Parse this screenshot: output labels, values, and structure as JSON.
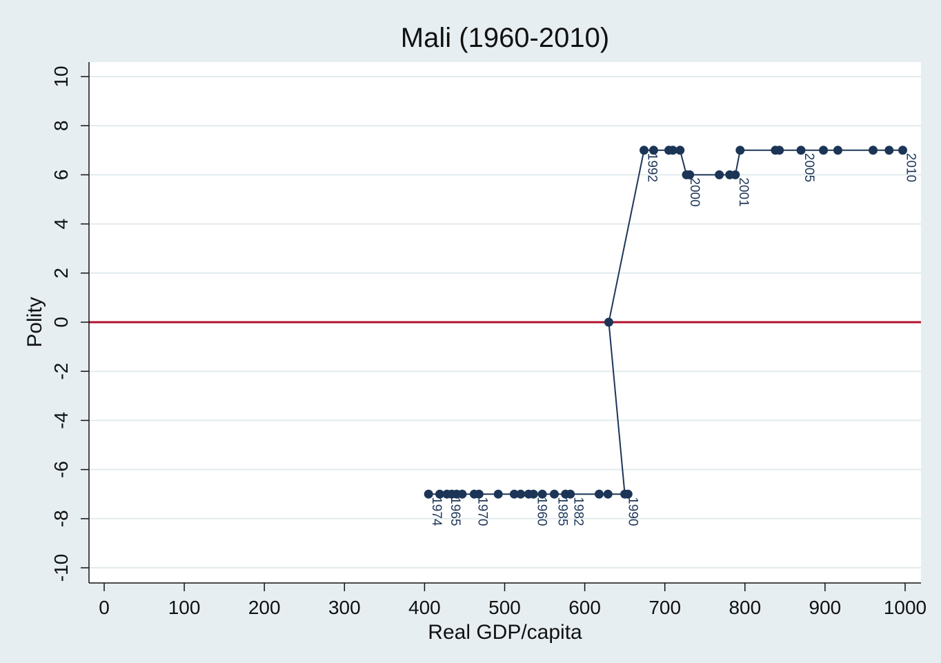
{
  "chart_data": {
    "type": "line",
    "title": "Mali (1960-2010)",
    "xlabel": "Real GDP/capita",
    "ylabel": "Polity",
    "xlim": [
      0,
      1000
    ],
    "ylim": [
      -10,
      10
    ],
    "xticks": [
      0,
      100,
      200,
      300,
      400,
      500,
      600,
      700,
      800,
      900,
      1000
    ],
    "yticks": [
      -10,
      -8,
      -6,
      -4,
      -2,
      0,
      2,
      4,
      6,
      8,
      10
    ],
    "grid": true,
    "reference_line": {
      "y": 0,
      "color": "#b0102e"
    },
    "series": [
      {
        "name": "Mali",
        "color": "#1c3557",
        "points": [
          {
            "x": 405,
            "y": -7,
            "label": "1974"
          },
          {
            "x": 419,
            "y": -7
          },
          {
            "x": 428,
            "y": -7,
            "label": "1965"
          },
          {
            "x": 434,
            "y": -7
          },
          {
            "x": 440,
            "y": -7
          },
          {
            "x": 447,
            "y": -7
          },
          {
            "x": 462,
            "y": -7,
            "label": "1970"
          },
          {
            "x": 468,
            "y": -7
          },
          {
            "x": 492,
            "y": -7
          },
          {
            "x": 512,
            "y": -7
          },
          {
            "x": 520,
            "y": -7
          },
          {
            "x": 530,
            "y": -7
          },
          {
            "x": 536,
            "y": -7,
            "label": "1960"
          },
          {
            "x": 547,
            "y": -7
          },
          {
            "x": 562,
            "y": -7,
            "label": "1985"
          },
          {
            "x": 576,
            "y": -7
          },
          {
            "x": 582,
            "y": -7,
            "label": "1982"
          },
          {
            "x": 618,
            "y": -7
          },
          {
            "x": 629,
            "y": -7
          },
          {
            "x": 654,
            "y": -7
          },
          {
            "x": 650,
            "y": -7,
            "label": "1990"
          },
          {
            "x": 630,
            "y": 0
          },
          {
            "x": 674,
            "y": 7,
            "label": "1992"
          },
          {
            "x": 686,
            "y": 7
          },
          {
            "x": 705,
            "y": 7
          },
          {
            "x": 710,
            "y": 7
          },
          {
            "x": 719,
            "y": 7
          },
          {
            "x": 727,
            "y": 6,
            "label": "2000"
          },
          {
            "x": 731,
            "y": 6
          },
          {
            "x": 768,
            "y": 6
          },
          {
            "x": 781,
            "y": 6
          },
          {
            "x": 788,
            "y": 6,
            "label": "2001"
          },
          {
            "x": 794,
            "y": 7
          },
          {
            "x": 838,
            "y": 7
          },
          {
            "x": 843,
            "y": 7
          },
          {
            "x": 870,
            "y": 7,
            "label": "2005"
          },
          {
            "x": 898,
            "y": 7
          },
          {
            "x": 916,
            "y": 7
          },
          {
            "x": 960,
            "y": 7
          },
          {
            "x": 980,
            "y": 7
          },
          {
            "x": 997,
            "y": 7,
            "label": "2010"
          }
        ]
      }
    ]
  }
}
